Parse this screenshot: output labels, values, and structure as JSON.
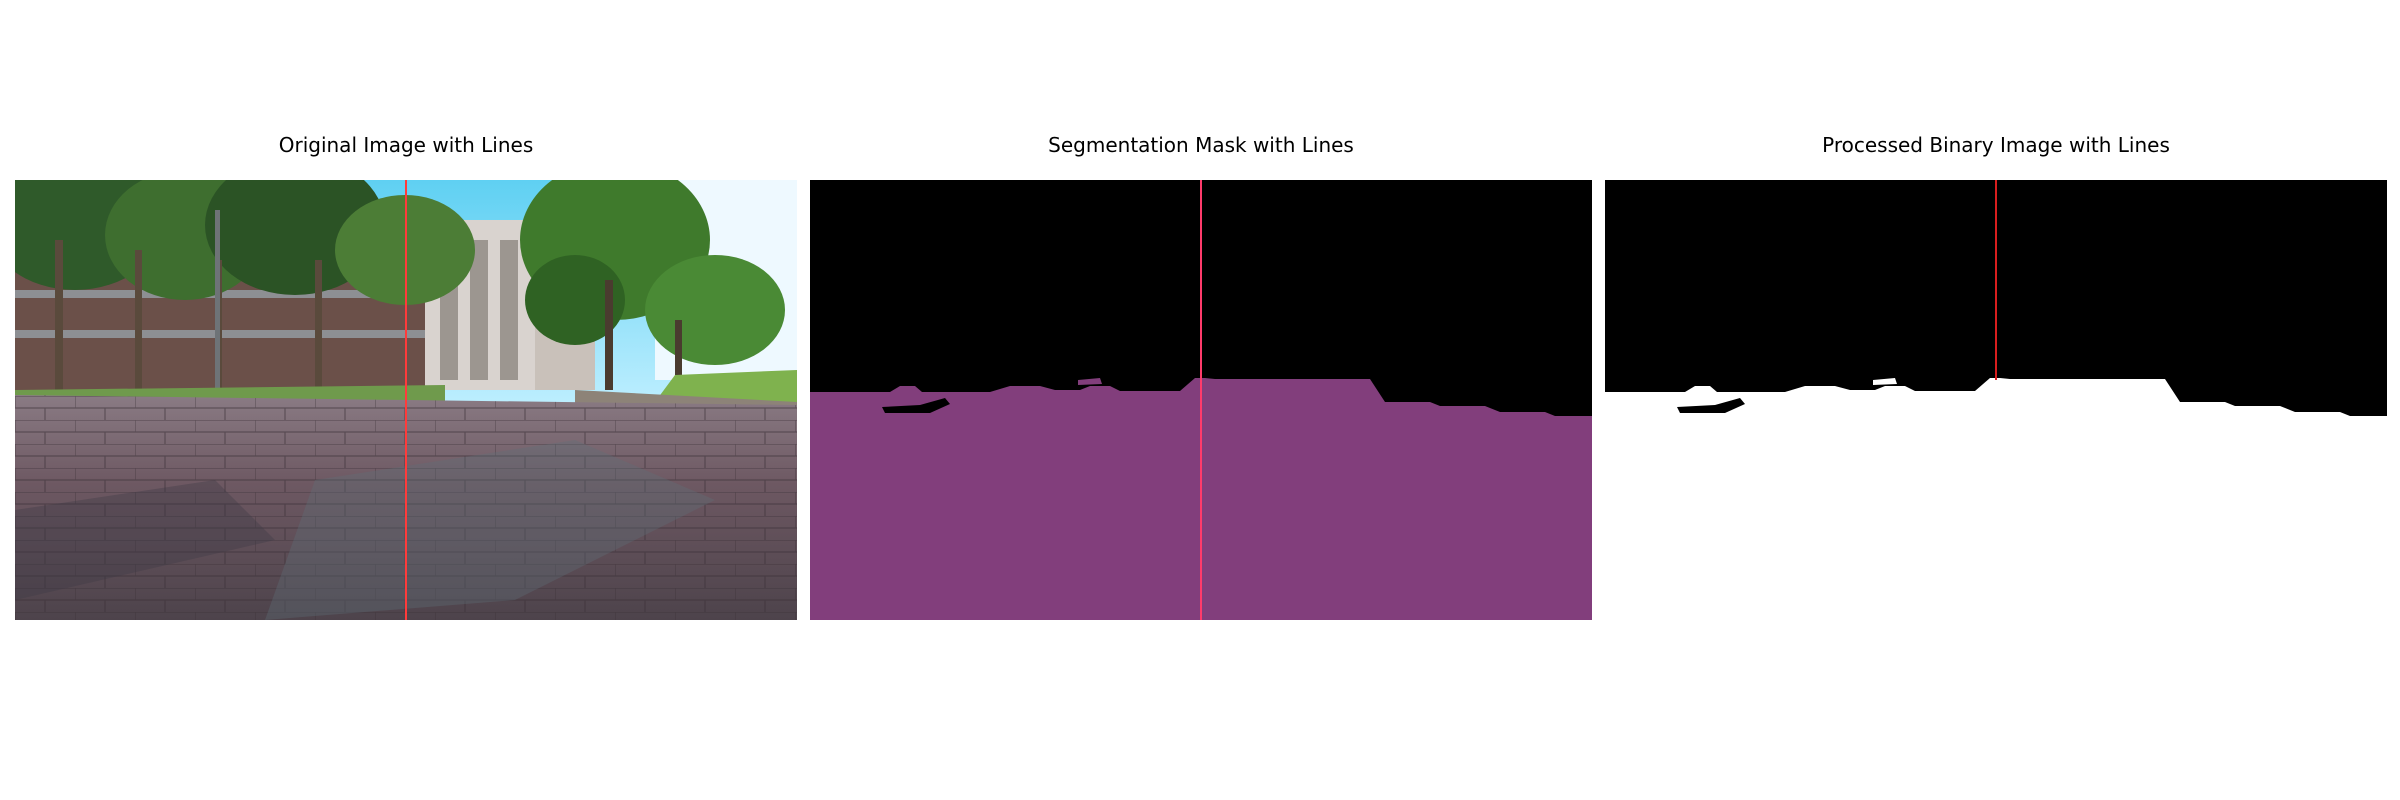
{
  "figure": {
    "panels": [
      {
        "title": "Original Image with Lines"
      },
      {
        "title": "Segmentation Mask with Lines"
      },
      {
        "title": "Processed Binary Image with Lines"
      }
    ]
  },
  "colors": {
    "line": "#ff3b3b",
    "mask": "#823e7c",
    "mask_background": "#000000",
    "binary_foreground": "#ffffff",
    "binary_background": "#000000"
  }
}
